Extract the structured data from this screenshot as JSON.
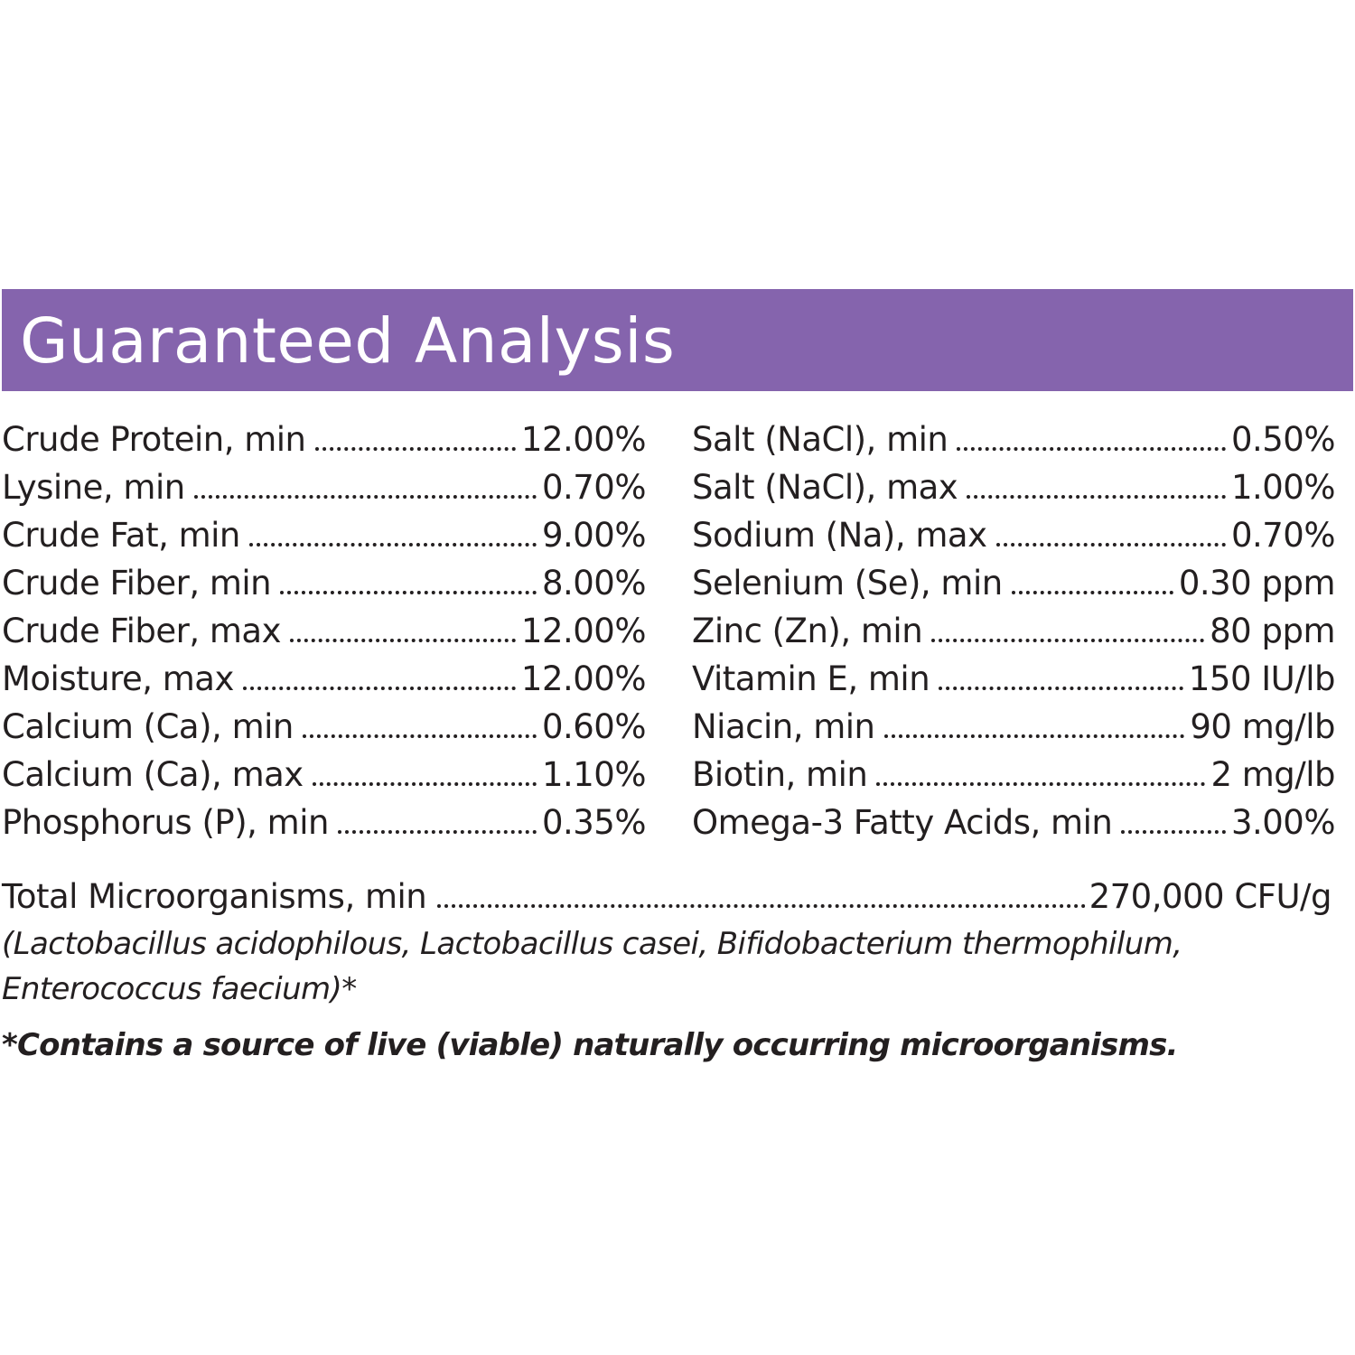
{
  "header": {
    "title": "Guaranteed Analysis",
    "bar_color": "#8564ad"
  },
  "analysis": {
    "left": [
      {
        "label": "Crude Protein, min",
        "value": "12.00%"
      },
      {
        "label": "Lysine, min",
        "value": "0.70%"
      },
      {
        "label": "Crude Fat, min",
        "value": "9.00%"
      },
      {
        "label": "Crude Fiber, min",
        "value": "8.00%"
      },
      {
        "label": "Crude Fiber, max",
        "value": "12.00%"
      },
      {
        "label": "Moisture, max",
        "value": "12.00%"
      },
      {
        "label": "Calcium (Ca), min",
        "value": "0.60%"
      },
      {
        "label": "Calcium (Ca), max",
        "value": "1.10%"
      },
      {
        "label": "Phosphorus (P), min",
        "value": "0.35%"
      }
    ],
    "right": [
      {
        "label": "Salt (NaCl), min",
        "value": "0.50%"
      },
      {
        "label": "Salt (NaCl), max",
        "value": "1.00%"
      },
      {
        "label": "Sodium (Na), max",
        "value": "0.70%"
      },
      {
        "label": "Selenium (Se), min",
        "value": "0.30 ppm"
      },
      {
        "label": "Zinc (Zn), min",
        "value": "80 ppm"
      },
      {
        "label": "Vitamin E, min",
        "value": "150 IU/lb"
      },
      {
        "label": "Niacin, min",
        "value": "90 mg/lb"
      },
      {
        "label": "Biotin, min",
        "value": "2 mg/lb"
      },
      {
        "label": "Omega-3 Fatty Acids, min",
        "value": "3.00%"
      }
    ]
  },
  "microorganisms": {
    "label": "Total Microorganisms, min",
    "value": "270,000 CFU/g",
    "strains_line1": "(Lactobacillus acidophilous, Lactobacillus casei, Bifidobacterium thermophilum,",
    "strains_line2": "Enterococcus faecium)*"
  },
  "footnote": "*Contains a source of live (viable) naturally occurring microorganisms."
}
